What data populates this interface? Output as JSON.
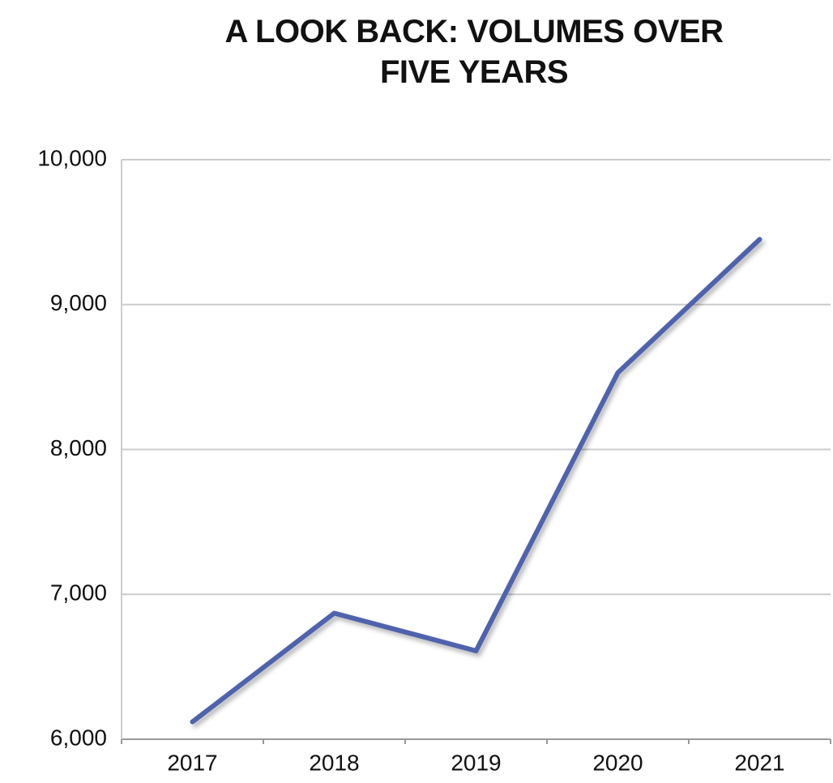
{
  "chart_data": {
    "type": "line",
    "title": "A LOOK BACK: VOLUMES OVER FIVE YEARS",
    "categories": [
      "2017",
      "2018",
      "2019",
      "2020",
      "2021"
    ],
    "values": [
      6120,
      6870,
      6610,
      8530,
      9450
    ],
    "color": "#4f63ad",
    "ylim": [
      6000,
      10000
    ],
    "yticks": [
      {
        "value": 6000,
        "label": "6,000"
      },
      {
        "value": 7000,
        "label": "7,000"
      },
      {
        "value": 8000,
        "label": "8,000"
      },
      {
        "value": 9000,
        "label": "9,000"
      },
      {
        "value": 10000,
        "label": "10,000"
      }
    ],
    "grid": true
  }
}
